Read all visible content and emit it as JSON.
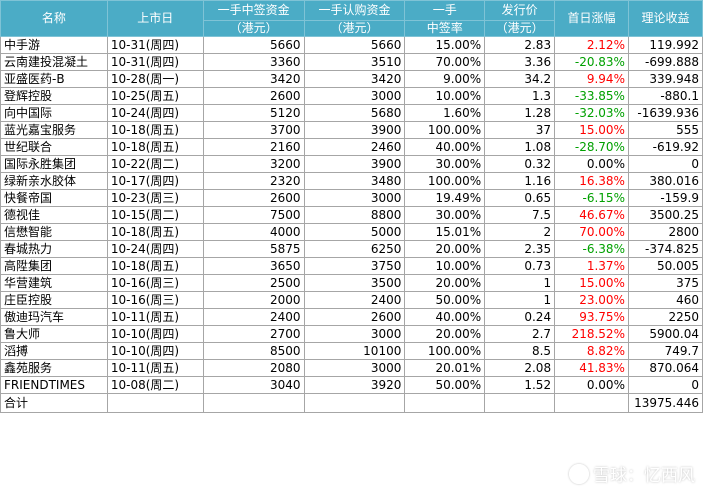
{
  "header": {
    "name": "名称",
    "list_date": "上市日",
    "lot_win_capital_1": "一手中签资金",
    "lot_win_capital_2": "（港元）",
    "lot_sub_capital_1": "一手认购资金",
    "lot_sub_capital_2": "（港元）",
    "lot_rate_1": "一手",
    "lot_rate_2": "中签率",
    "issue_price_1": "发行价",
    "issue_price_2": "（港元）",
    "first_day_gain": "首日涨幅",
    "theory_profit": "理论收益"
  },
  "rows": [
    {
      "name": "中手游",
      "date": "10-31(周四)",
      "win": "5660",
      "sub": "5660",
      "rate": "15.00%",
      "price": "2.83",
      "gain": "2.12%",
      "gain_color": "red",
      "profit": "119.992"
    },
    {
      "name": "云南建投混凝土",
      "date": "10-31(周四)",
      "win": "3360",
      "sub": "3510",
      "rate": "70.00%",
      "price": "3.36",
      "gain": "-20.83%",
      "gain_color": "green",
      "profit": "-699.888"
    },
    {
      "name": "亚盛医药-B",
      "date": "10-28(周一)",
      "win": "3420",
      "sub": "3420",
      "rate": "9.00%",
      "price": "34.2",
      "gain": "9.94%",
      "gain_color": "red",
      "profit": "339.948"
    },
    {
      "name": "登辉控股",
      "date": "10-25(周五)",
      "win": "2600",
      "sub": "3000",
      "rate": "10.00%",
      "price": "1.3",
      "gain": "-33.85%",
      "gain_color": "green",
      "profit": "-880.1"
    },
    {
      "name": "向中国际",
      "date": "10-24(周四)",
      "win": "5120",
      "sub": "5680",
      "rate": "1.60%",
      "price": "1.28",
      "gain": "-32.03%",
      "gain_color": "green",
      "profit": "-1639.936"
    },
    {
      "name": "蓝光嘉宝服务",
      "date": "10-18(周五)",
      "win": "3700",
      "sub": "3900",
      "rate": "100.00%",
      "price": "37",
      "gain": "15.00%",
      "gain_color": "red",
      "profit": "555"
    },
    {
      "name": "世纪联合",
      "date": "10-18(周五)",
      "win": "2160",
      "sub": "2460",
      "rate": "40.00%",
      "price": "1.08",
      "gain": "-28.70%",
      "gain_color": "green",
      "profit": "-619.92"
    },
    {
      "name": "国际永胜集团",
      "date": "10-22(周二)",
      "win": "3200",
      "sub": "3900",
      "rate": "30.00%",
      "price": "0.32",
      "gain": "0.00%",
      "gain_color": "black",
      "profit": "0"
    },
    {
      "name": "绿新亲水胶体",
      "date": "10-17(周四)",
      "win": "2320",
      "sub": "3480",
      "rate": "100.00%",
      "price": "1.16",
      "gain": "16.38%",
      "gain_color": "red",
      "profit": "380.016"
    },
    {
      "name": "快餐帝国",
      "date": "10-23(周三)",
      "win": "2600",
      "sub": "3000",
      "rate": "19.49%",
      "price": "0.65",
      "gain": "-6.15%",
      "gain_color": "green",
      "profit": "-159.9"
    },
    {
      "name": "德视佳",
      "date": "10-15(周二)",
      "win": "7500",
      "sub": "8800",
      "rate": "30.00%",
      "price": "7.5",
      "gain": "46.67%",
      "gain_color": "red",
      "profit": "3500.25"
    },
    {
      "name": "信懋智能",
      "date": "10-18(周五)",
      "win": "4000",
      "sub": "5000",
      "rate": "15.01%",
      "price": "2",
      "gain": "70.00%",
      "gain_color": "red",
      "profit": "2800"
    },
    {
      "name": "春城热力",
      "date": "10-24(周四)",
      "win": "5875",
      "sub": "6250",
      "rate": "20.00%",
      "price": "2.35",
      "gain": "-6.38%",
      "gain_color": "green",
      "profit": "-374.825"
    },
    {
      "name": "高陞集团",
      "date": "10-18(周五)",
      "win": "3650",
      "sub": "3750",
      "rate": "10.00%",
      "price": "0.73",
      "gain": "1.37%",
      "gain_color": "red",
      "profit": "50.005"
    },
    {
      "name": "华营建筑",
      "date": "10-16(周三)",
      "win": "2500",
      "sub": "3500",
      "rate": "20.00%",
      "price": "1",
      "gain": "15.00%",
      "gain_color": "red",
      "profit": "375"
    },
    {
      "name": "庄臣控股",
      "date": "10-16(周三)",
      "win": "2000",
      "sub": "2400",
      "rate": "50.00%",
      "price": "1",
      "gain": "23.00%",
      "gain_color": "red",
      "profit": "460"
    },
    {
      "name": "傲迪玛汽车",
      "date": "10-11(周五)",
      "win": "2400",
      "sub": "2600",
      "rate": "40.00%",
      "price": "0.24",
      "gain": "93.75%",
      "gain_color": "red",
      "profit": "2250"
    },
    {
      "name": "鲁大师",
      "date": "10-10(周四)",
      "win": "2700",
      "sub": "3000",
      "rate": "20.00%",
      "price": "2.7",
      "gain": "218.52%",
      "gain_color": "red",
      "profit": "5900.04"
    },
    {
      "name": "滔搏",
      "date": "10-10(周四)",
      "win": "8500",
      "sub": "10100",
      "rate": "100.00%",
      "price": "8.5",
      "gain": "8.82%",
      "gain_color": "red",
      "profit": "749.7"
    },
    {
      "name": "鑫苑服务",
      "date": "10-11(周五)",
      "win": "2080",
      "sub": "3000",
      "rate": "20.01%",
      "price": "2.08",
      "gain": "41.83%",
      "gain_color": "red",
      "profit": "870.064"
    },
    {
      "name": "FRIENDTIMES",
      "date": "10-08(周二)",
      "win": "3040",
      "sub": "3920",
      "rate": "50.00%",
      "price": "1.52",
      "gain": "0.00%",
      "gain_color": "black",
      "profit": "0"
    }
  ],
  "total": {
    "label": "合计",
    "profit": "13975.446"
  },
  "watermark": {
    "text": "雪球：忆西风"
  }
}
